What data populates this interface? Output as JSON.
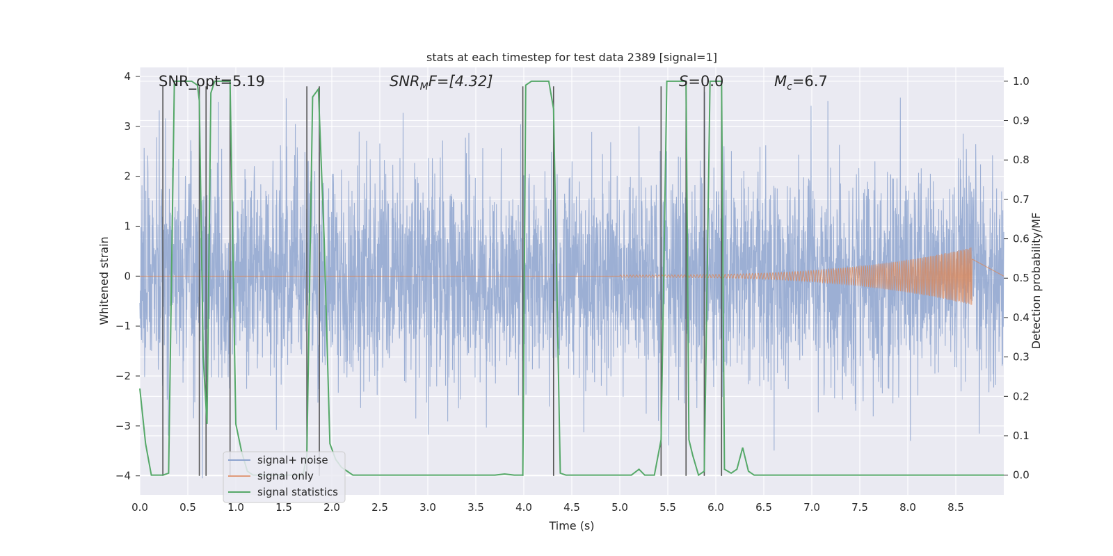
{
  "chart_data": {
    "type": "line",
    "title": "stats at each timestep for test data 2389 [signal=1]",
    "xlabel": "Time (s)",
    "ylabel_left": "Whitened strain",
    "ylabel_right": "Detection probability/MF",
    "xlim": [
      0.0,
      9.0
    ],
    "ylim_left": [
      -4.38,
      4.18
    ],
    "ylim_right": [
      -0.05,
      1.035
    ],
    "x_ticks": [
      0.0,
      0.5,
      1.0,
      1.5,
      2.0,
      2.5,
      3.0,
      3.5,
      4.0,
      4.5,
      5.0,
      5.5,
      6.0,
      6.5,
      7.0,
      7.5,
      8.0,
      8.5
    ],
    "x_tick_labels": [
      "0.0",
      "0.5",
      "1.0",
      "1.5",
      "2.0",
      "2.5",
      "3.0",
      "3.5",
      "4.0",
      "4.5",
      "5.0",
      "5.5",
      "6.0",
      "6.5",
      "7.0",
      "7.5",
      "8.0",
      "8.5"
    ],
    "y_left_ticks": [
      -4,
      -3,
      -2,
      -1,
      0,
      1,
      2,
      3,
      4
    ],
    "y_left_tick_labels": [
      "−4",
      "−3",
      "−2",
      "−1",
      "0",
      "1",
      "2",
      "3",
      "4"
    ],
    "y_right_ticks": [
      0.0,
      0.1,
      0.2,
      0.3,
      0.4,
      0.5,
      0.6,
      0.7,
      0.8,
      0.9,
      1.0
    ],
    "y_right_tick_labels": [
      "0.0",
      "0.1",
      "0.2",
      "0.3",
      "0.4",
      "0.5",
      "0.6",
      "0.7",
      "0.8",
      "0.9",
      "1.0"
    ],
    "annotations": {
      "snr_opt": "SNR_opt=5.19",
      "snr_mf_name": "SNR",
      "snr_mf_sub": "M",
      "snr_mf_rest": "F=[4.32]",
      "s_name": "S",
      "s_rest": "=0.0",
      "mc_name": "M",
      "mc_sub": "c",
      "mc_rest": "=6.7"
    },
    "legend": {
      "position": "lower-left",
      "entries": [
        {
          "label": "signal+ noise",
          "color": "#8ea4cf"
        },
        {
          "label": "signal only",
          "color": "#e09a7a"
        },
        {
          "label": "signal statistics",
          "color": "#55a868"
        }
      ]
    },
    "colors": {
      "noise": "#8ea4cf",
      "signal": "#dd8452",
      "stats": "#55a868",
      "vlines": "#555555",
      "background": "#eaeaf2",
      "grid": "#ffffff"
    },
    "noise_series": {
      "name": "signal+ noise",
      "t_start": 0.0,
      "t_end": 9.0,
      "std": 1.05,
      "note": "whitened Gaussian noise envelope, peaks roughly within [-4, 3.8]"
    },
    "signal_series": {
      "name": "signal only",
      "type": "chirp",
      "onset_t": 5.0,
      "merger_t": 8.67,
      "peak_amplitude": 0.58
    },
    "vertical_lines": {
      "x": [
        0.24,
        0.62,
        0.69,
        0.94,
        1.74,
        1.87,
        3.99,
        4.31,
        5.43,
        5.69,
        5.88,
        6.06
      ],
      "y_range": [
        -4.0,
        3.8
      ]
    },
    "stats_series": {
      "name": "signal statistics",
      "x": [
        0.0,
        0.06,
        0.12,
        0.18,
        0.24,
        0.3,
        0.36,
        0.42,
        0.48,
        0.54,
        0.6,
        0.62,
        0.66,
        0.7,
        0.74,
        0.78,
        0.84,
        0.9,
        0.94,
        1.0,
        1.06,
        1.12,
        1.18,
        1.24,
        1.3,
        1.5,
        1.7,
        1.74,
        1.8,
        1.86,
        1.92,
        1.98,
        2.04,
        2.1,
        2.16,
        2.22,
        2.4,
        3.0,
        3.5,
        3.7,
        3.8,
        3.9,
        3.99,
        4.02,
        4.08,
        4.14,
        4.2,
        4.26,
        4.31,
        4.38,
        4.44,
        5.0,
        5.12,
        5.2,
        5.26,
        5.36,
        5.43,
        5.49,
        5.55,
        5.62,
        5.69,
        5.72,
        5.76,
        5.82,
        5.88,
        5.94,
        6.0,
        6.06,
        6.09,
        6.16,
        6.22,
        6.28,
        6.34,
        6.4,
        6.46,
        7.0,
        8.0,
        9.0
      ],
      "y": [
        0.22,
        0.08,
        0.0,
        0.0,
        0.0,
        0.005,
        1.0,
        1.0,
        1.0,
        1.0,
        0.99,
        0.95,
        0.3,
        0.13,
        0.97,
        1.0,
        1.0,
        1.0,
        1.0,
        0.13,
        0.06,
        0.01,
        0.0,
        0.0,
        0.0,
        0.0,
        0.0,
        0.05,
        0.96,
        0.98,
        0.6,
        0.08,
        0.04,
        0.02,
        0.01,
        0.0,
        0.0,
        0.0,
        0.0,
        0.0,
        0.003,
        0.0,
        0.0,
        0.99,
        1.0,
        1.0,
        1.0,
        1.0,
        0.93,
        0.005,
        0.0,
        0.0,
        0.0,
        0.015,
        0.0,
        0.0,
        0.09,
        1.0,
        1.0,
        1.0,
        1.0,
        0.09,
        0.05,
        0.0,
        0.01,
        1.0,
        1.0,
        1.0,
        0.015,
        0.005,
        0.015,
        0.07,
        0.01,
        0.0,
        0.0,
        0.0,
        0.0,
        0.0
      ]
    }
  }
}
